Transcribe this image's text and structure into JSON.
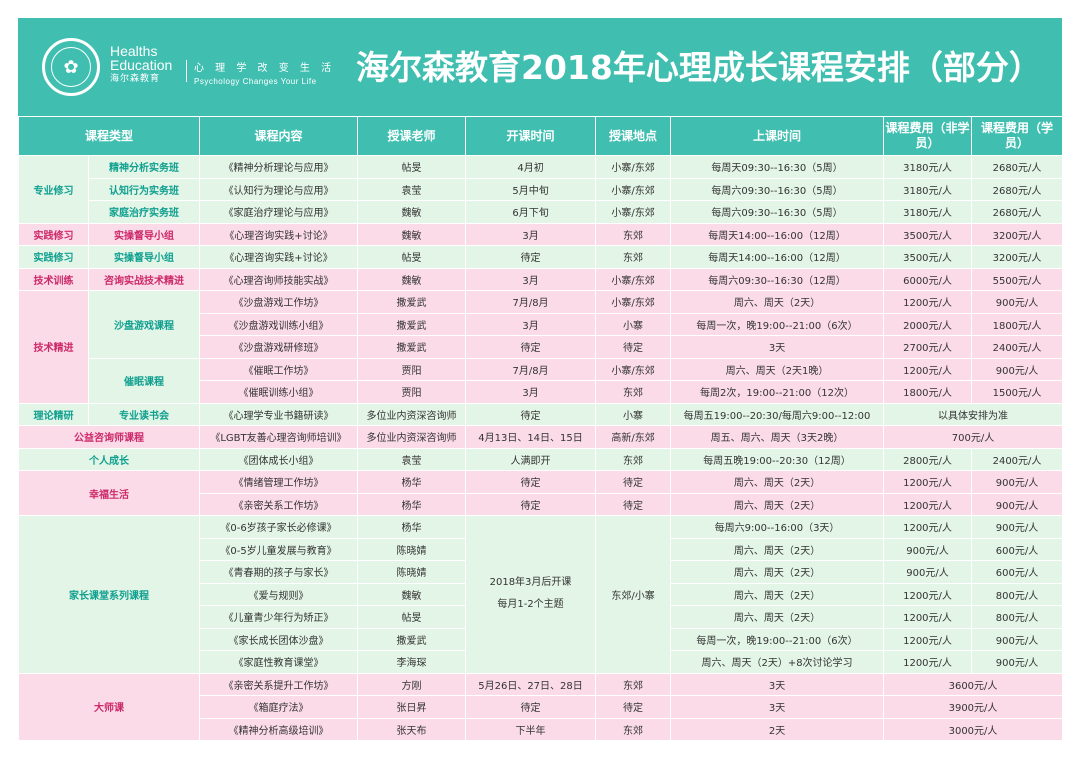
{
  "header": {
    "logo_en_line1": "Healths",
    "logo_en_line2": "Education",
    "logo_cn": "海尔森教育",
    "slogan_cn": "心 理 学 改 变 生 活",
    "slogan_en": "Psychology Changes Your Life",
    "title": "海尔森教育2018年心理成长课程安排（部分）"
  },
  "colors": {
    "accent": "#40bfb1",
    "green_row": "#e3f5e6",
    "pink_row": "#fbdbe8",
    "green_text": "#10a090",
    "pink_text": "#cc2a6a"
  },
  "table": {
    "headers": [
      "课程类型",
      "课程内容",
      "授课老师",
      "开课时间",
      "授课地点",
      "上课时间",
      "课程费用（非学员）",
      "课程费用（学员）"
    ],
    "categories": {
      "zhuanye": "专业修习",
      "shijian1": "实践修习",
      "shijian2": "实践修习",
      "jishu_xunlian": "技术训练",
      "jishu_jingjin": "技术精进",
      "lilun": "理论精研",
      "gongyi": "公益咨询师课程",
      "geren": "个人成长",
      "xingfu": "幸福生活",
      "jiazhang": "家长课堂系列课程",
      "dashi": "大师课"
    },
    "subcategories": {
      "jingshen": "精神分析实务班",
      "renzhi": "认知行为实务班",
      "jiating": "家庭治疗实务班",
      "ducao1": "实操督导小组",
      "ducao2": "实操督导小组",
      "zixun": "咨询实战技术精进",
      "shapan": "沙盘游戏课程",
      "cuimian": "催眠课程",
      "dushu": "专业读书会"
    },
    "rows": [
      {
        "content": "《精神分析理论与应用》",
        "teacher": "帖旻",
        "start": "4月初",
        "place": "小寨/东郊",
        "schedule": "每周天09:30--16:30（5周）",
        "fee_non": "3180元/人",
        "fee_mem": "2680元/人"
      },
      {
        "content": "《认知行为理论与应用》",
        "teacher": "袁莹",
        "start": "5月中旬",
        "place": "小寨/东郊",
        "schedule": "每周六09:30--16:30（5周）",
        "fee_non": "3180元/人",
        "fee_mem": "2680元/人"
      },
      {
        "content": "《家庭治疗理论与应用》",
        "teacher": "魏敏",
        "start": "6月下旬",
        "place": "小寨/东郊",
        "schedule": "每周六09:30--16:30（5周）",
        "fee_non": "3180元/人",
        "fee_mem": "2680元/人"
      },
      {
        "content": "《心理咨询实践+讨论》",
        "teacher": "魏敏",
        "start": "3月",
        "place": "东郊",
        "schedule": "每周天14:00--16:00（12周）",
        "fee_non": "3500元/人",
        "fee_mem": "3200元/人"
      },
      {
        "content": "《心理咨询实践+讨论》",
        "teacher": "帖旻",
        "start": "待定",
        "place": "东郊",
        "schedule": "每周天14:00--16:00（12周）",
        "fee_non": "3500元/人",
        "fee_mem": "3200元/人"
      },
      {
        "content": "《心理咨询师技能实战》",
        "teacher": "魏敏",
        "start": "3月",
        "place": "小寨/东郊",
        "schedule": "每周六09:30--16:30（12周）",
        "fee_non": "6000元/人",
        "fee_mem": "5500元/人"
      },
      {
        "content": "《沙盘游戏工作坊》",
        "teacher": "撒爱武",
        "start": "7月/8月",
        "place": "小寨/东郊",
        "schedule": "周六、周天（2天）",
        "fee_non": "1200元/人",
        "fee_mem": "900元/人"
      },
      {
        "content": "《沙盘游戏训练小组》",
        "teacher": "撒爱武",
        "start": "3月",
        "place": "小寨",
        "schedule": "每周一次，晚19:00--21:00（6次）",
        "fee_non": "2000元/人",
        "fee_mem": "1800元/人"
      },
      {
        "content": "《沙盘游戏研修班》",
        "teacher": "撒爱武",
        "start": "待定",
        "place": "待定",
        "schedule": "3天",
        "fee_non": "2700元/人",
        "fee_mem": "2400元/人"
      },
      {
        "content": "《催眠工作坊》",
        "teacher": "贾阳",
        "start": "7月/8月",
        "place": "小寨/东郊",
        "schedule": "周六、周天（2天1晚）",
        "fee_non": "1200元/人",
        "fee_mem": "900元/人"
      },
      {
        "content": "《催眠训练小组》",
        "teacher": "贾阳",
        "start": "3月",
        "place": "东郊",
        "schedule": "每周2次，19:00--21:00（12次）",
        "fee_non": "1800元/人",
        "fee_mem": "1500元/人"
      },
      {
        "content": "《心理学专业书籍研读》",
        "teacher": "多位业内资深咨询师",
        "start": "待定",
        "place": "小寨",
        "schedule": "每周五19:00--20:30/每周六9:00--12:00",
        "fee_merged": "以具体安排为准"
      },
      {
        "content": "《LGBT友善心理咨询师培训》",
        "teacher": "多位业内资深咨询师",
        "start": "4月13日、14日、15日",
        "place": "高新/东郊",
        "schedule": "周五、周六、周天（3天2晚）",
        "fee_merged": "700元/人"
      },
      {
        "content": "《团体成长小组》",
        "teacher": "袁莹",
        "start": "人满即开",
        "place": "东郊",
        "schedule": "每周五晚19:00--20:30（12周）",
        "fee_non": "2800元/人",
        "fee_mem": "2400元/人"
      },
      {
        "content": "《情绪管理工作坊》",
        "teacher": "杨华",
        "start": "待定",
        "place": "待定",
        "schedule": "周六、周天（2天）",
        "fee_non": "1200元/人",
        "fee_mem": "900元/人"
      },
      {
        "content": "《亲密关系工作坊》",
        "teacher": "杨华",
        "start": "待定",
        "place": "待定",
        "schedule": "周六、周天（2天）",
        "fee_non": "1200元/人",
        "fee_mem": "900元/人"
      },
      {
        "content": "《0-6岁孩子家长必修课》",
        "teacher": "杨华",
        "schedule": "每周六9:00--16:00（3天）",
        "fee_non": "1200元/人",
        "fee_mem": "900元/人"
      },
      {
        "content": "《0-5岁儿童发展与教育》",
        "teacher": "陈晓婧",
        "schedule": "周六、周天（2天）",
        "fee_non": "900元/人",
        "fee_mem": "600元/人"
      },
      {
        "content": "《青春期的孩子与家长》",
        "teacher": "陈晓婧",
        "schedule": "周六、周天（2天）",
        "fee_non": "900元/人",
        "fee_mem": "600元/人"
      },
      {
        "content": "《爱与规则》",
        "teacher": "魏敏",
        "schedule": "周六、周天（2天）",
        "fee_non": "1200元/人",
        "fee_mem": "800元/人"
      },
      {
        "content": "《儿童青少年行为矫正》",
        "teacher": "帖旻",
        "schedule": "周六、周天（2天）",
        "fee_non": "1200元/人",
        "fee_mem": "800元/人"
      },
      {
        "content": "《家长成长团体沙盘》",
        "teacher": "撒爱武",
        "schedule": "每周一次，晚19:00--21:00（6次）",
        "fee_non": "1200元/人",
        "fee_mem": "900元/人"
      },
      {
        "content": "《家庭性教育课堂》",
        "teacher": "李海琛",
        "schedule": "周六、周天（2天）+8次讨论学习",
        "fee_non": "1200元/人",
        "fee_mem": "900元/人"
      },
      {
        "content": "《亲密关系提升工作坊》",
        "teacher": "方刚",
        "start": "5月26日、27日、28日",
        "place": "东郊",
        "schedule": "3天",
        "fee_merged": "3600元/人"
      },
      {
        "content": "《箱庭疗法》",
        "teacher": "张日昇",
        "start": "待定",
        "place": "待定",
        "schedule": "3天",
        "fee_merged": "3900元/人"
      },
      {
        "content": "《精神分析高级培训》",
        "teacher": "张天布",
        "start": "下半年",
        "place": "东郊",
        "schedule": "2天",
        "fee_merged": "3000元/人"
      }
    ],
    "parents_start_line1": "2018年3月后开课",
    "parents_start_line2": "每月1-2个主题",
    "parents_place": "东郊/小寨"
  }
}
